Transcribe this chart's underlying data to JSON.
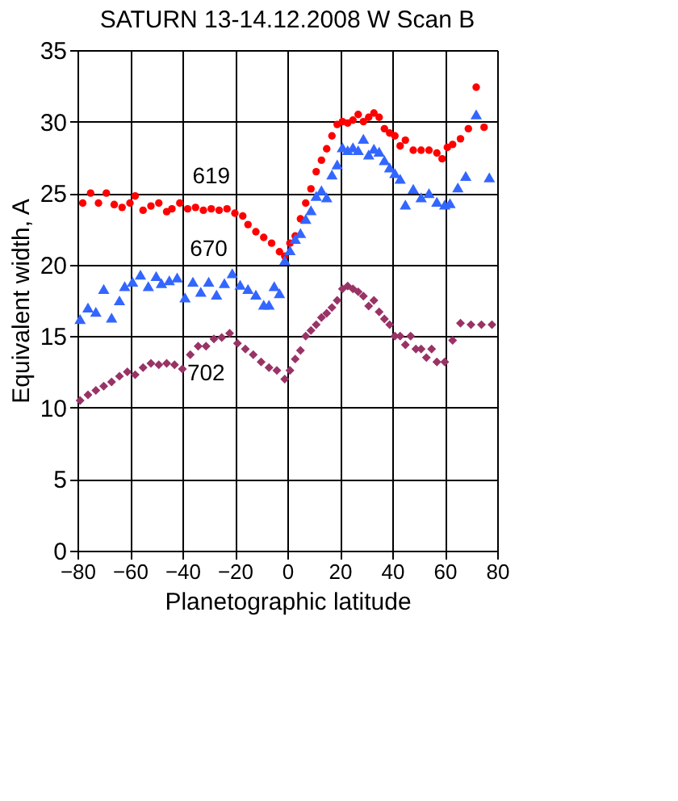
{
  "chart_data": {
    "type": "scatter",
    "title": "SATURN 13-14.12.2008 W Scan B",
    "xlabel": "Planetographic latitude",
    "ylabel": "Equivalent width, A",
    "xlim": [
      -80,
      80
    ],
    "xticks": [
      -80,
      -60,
      -40,
      -20,
      0,
      20,
      40,
      60,
      80
    ],
    "ylim": [
      0,
      35
    ],
    "yticks": [
      0,
      5,
      10,
      15,
      20,
      25,
      30,
      35
    ],
    "grid": true,
    "legend": false,
    "series": [
      {
        "name": "619",
        "color": "#ff0000",
        "marker": "circle",
        "x": [
          -78,
          -75,
          -72,
          -69,
          -66,
          -63,
          -60,
          -58,
          -55,
          -52,
          -49,
          -46,
          -44,
          -41,
          -38,
          -35,
          -32,
          -29,
          -26,
          -23,
          -20,
          -17,
          -15,
          -12,
          -9,
          -6,
          -3,
          -1,
          1,
          3,
          5,
          7,
          9,
          11,
          13,
          15,
          17,
          19,
          21,
          23,
          25,
          27,
          29,
          31,
          33,
          35,
          37,
          39,
          41,
          43,
          45,
          48,
          51,
          54,
          57,
          59,
          61,
          63,
          66,
          69,
          72,
          75
        ],
        "values": [
          24.3,
          25,
          24.3,
          25,
          24.2,
          24,
          24.3,
          24.8,
          23.8,
          24.1,
          24.3,
          23.7,
          23.9,
          24.3,
          23.9,
          24,
          23.8,
          23.9,
          23.8,
          23.9,
          23.6,
          23.4,
          22.8,
          22.3,
          21.9,
          21.5,
          20.9,
          20.6,
          21.5,
          22,
          23.2,
          24.3,
          25.3,
          26.5,
          27.3,
          28.1,
          29,
          29.8,
          30,
          29.9,
          30.1,
          30.5,
          30,
          30.3,
          30.6,
          30.3,
          29.5,
          29.2,
          29,
          28.3,
          28.7,
          28,
          28,
          28,
          27.8,
          27.4,
          28.2,
          28.4,
          28.8,
          29.5,
          32.4,
          29.6
        ]
      },
      {
        "name": "670",
        "color": "#3366ff",
        "marker": "triangle",
        "x": [
          -79,
          -76,
          -73,
          -70,
          -67,
          -64,
          -62,
          -59,
          -56,
          -53,
          -50,
          -48,
          -45,
          -42,
          -39,
          -36,
          -33,
          -30,
          -27,
          -24,
          -21,
          -18,
          -15,
          -12,
          -9,
          -7,
          -5,
          -3,
          -1,
          1,
          3,
          5,
          7,
          9,
          11,
          13,
          15,
          17,
          19,
          21,
          23,
          25,
          27,
          29,
          31,
          33,
          35,
          37,
          39,
          41,
          43,
          45,
          48,
          51,
          54,
          57,
          60,
          62,
          65,
          68,
          72,
          77
        ],
        "values": [
          16.2,
          17,
          16.7,
          18.3,
          16.3,
          17.5,
          18.5,
          18.8,
          19.3,
          18.5,
          19.2,
          18.7,
          18.9,
          19.1,
          17.7,
          18.8,
          18.1,
          18.8,
          17.9,
          18.7,
          19.4,
          18.6,
          18.3,
          17.9,
          17.2,
          17.2,
          18.5,
          18,
          20.3,
          21,
          21.8,
          22.2,
          23.2,
          23.8,
          24.8,
          25.2,
          24.7,
          26.3,
          27,
          28.2,
          28,
          28.2,
          28,
          28.8,
          27.7,
          28.1,
          27.9,
          27.3,
          26.8,
          26.4,
          26,
          24.2,
          25.3,
          24.7,
          25,
          24.4,
          24.2,
          24.3,
          25.4,
          26.2,
          30.5,
          26.1
        ]
      },
      {
        "name": "702",
        "color": "#993366",
        "marker": "diamond",
        "x": [
          -79,
          -76,
          -73,
          -70,
          -67,
          -64,
          -61,
          -58,
          -55,
          -52,
          -49,
          -46,
          -43,
          -40,
          -37,
          -34,
          -31,
          -28,
          -25,
          -22,
          -19,
          -16,
          -13,
          -10,
          -7,
          -4,
          -1,
          1,
          3,
          5,
          7,
          9,
          11,
          13,
          15,
          17,
          19,
          21,
          23,
          25,
          27,
          29,
          31,
          33,
          35,
          37,
          39,
          41,
          43,
          45,
          47,
          49,
          51,
          53,
          55,
          57,
          60,
          63,
          66,
          70,
          74,
          78
        ],
        "values": [
          10.5,
          10.9,
          11.2,
          11.5,
          11.8,
          12.2,
          12.5,
          12.3,
          12.8,
          13.1,
          13,
          13.1,
          13,
          12.7,
          13.7,
          14.3,
          14.3,
          14.8,
          14.9,
          15.2,
          14.5,
          14.1,
          13.7,
          13.2,
          12.8,
          12.6,
          12,
          12.6,
          13.4,
          14,
          15,
          15.4,
          15.8,
          16.3,
          16.6,
          17,
          17.5,
          18.3,
          18.5,
          18.3,
          18.1,
          17.8,
          17.1,
          17.5,
          16.7,
          16.2,
          15.8,
          15,
          15,
          14.4,
          15,
          14.1,
          14.1,
          13.5,
          14.1,
          13.2,
          13.2,
          14.7,
          15.9,
          15.8,
          15.8,
          15.8
        ]
      }
    ]
  }
}
